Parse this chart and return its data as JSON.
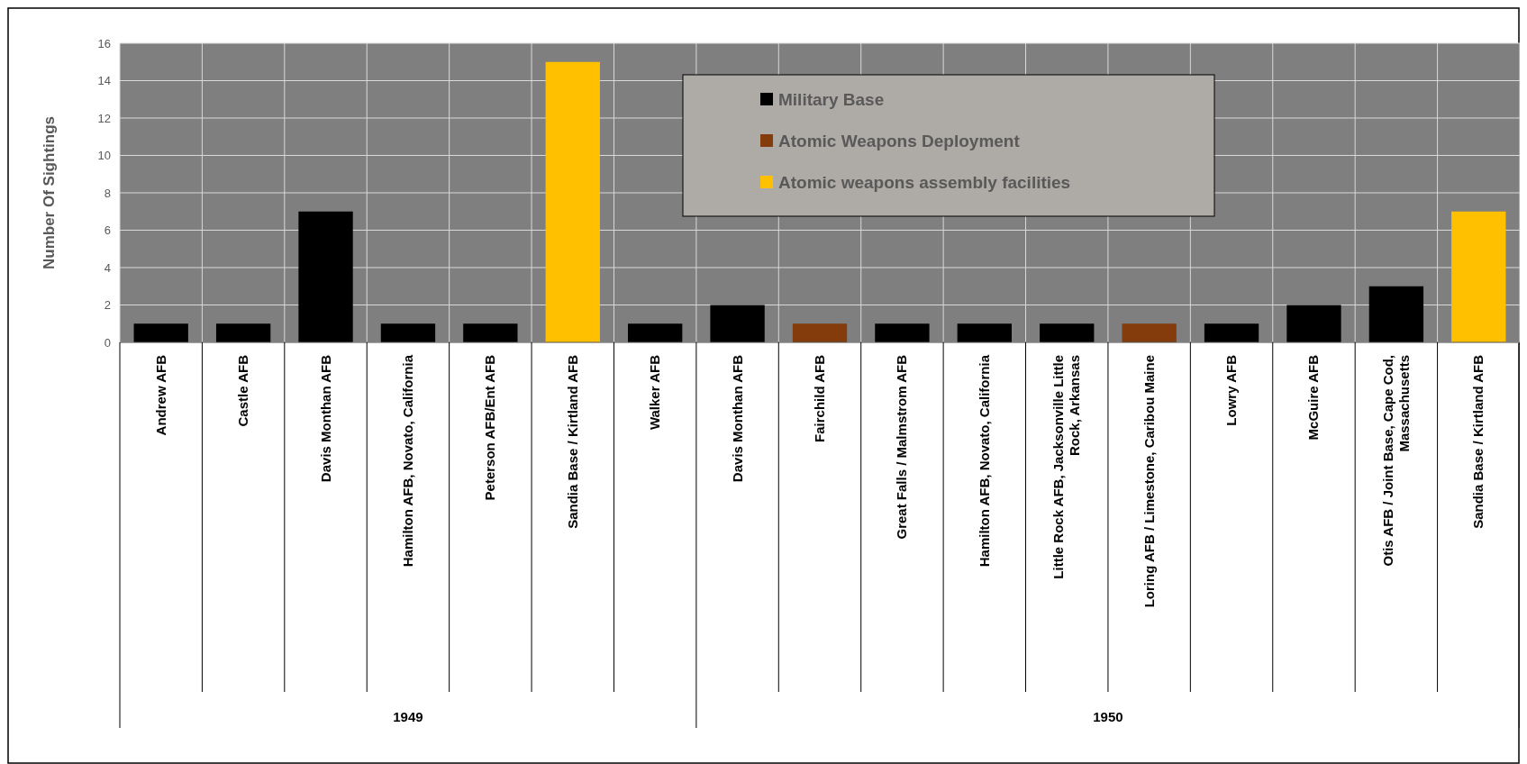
{
  "chart_data": {
    "type": "bar",
    "ylabel": "Number Of Sightings",
    "grid": true,
    "legend": "top",
    "categories": [
      "Andrew AFB",
      "Castle AFB",
      "Davis Monthan AFB",
      "Hamilton AFB, Novato, California",
      "Peterson AFB/Ent AFB",
      "Sandia Base / Kirtland AFB",
      "Walker AFB",
      "Davis Monthan AFB",
      "Fairchild AFB",
      "Great Falls / Malmstrom AFB",
      "Hamilton AFB, Novato, California",
      "Little Rock AFB, Jacksonville Little Rock, Arkansas",
      "Loring AFB / Limestone, Caribou Maine",
      "Lowry AFB",
      "McGuire AFB",
      "Otis AFB / Joint Base, Cape Cod, Massachusetts",
      "Sandia Base / Kirtland AFB"
    ],
    "series": [
      {
        "name": "Military Base",
        "color": "#000000",
        "values": [
          1,
          1,
          7,
          1,
          1,
          null,
          1,
          2,
          null,
          1,
          1,
          1,
          null,
          1,
          2,
          3,
          null
        ]
      },
      {
        "name": "Atomic Weapons Deployment",
        "color": "#843c0c",
        "values": [
          null,
          null,
          null,
          null,
          null,
          null,
          null,
          null,
          1,
          null,
          null,
          null,
          1,
          null,
          null,
          null,
          null
        ]
      },
      {
        "name": "Atomic weapons assembly facilities",
        "color": "#ffc000",
        "values": [
          null,
          null,
          null,
          null,
          null,
          15,
          null,
          null,
          null,
          null,
          null,
          null,
          null,
          null,
          null,
          null,
          7
        ]
      }
    ],
    "ylim": [
      0,
      16
    ],
    "yticks": [
      0,
      2,
      4,
      6,
      8,
      10,
      12,
      14,
      16
    ],
    "annotations": [
      "1949",
      "1950"
    ]
  }
}
